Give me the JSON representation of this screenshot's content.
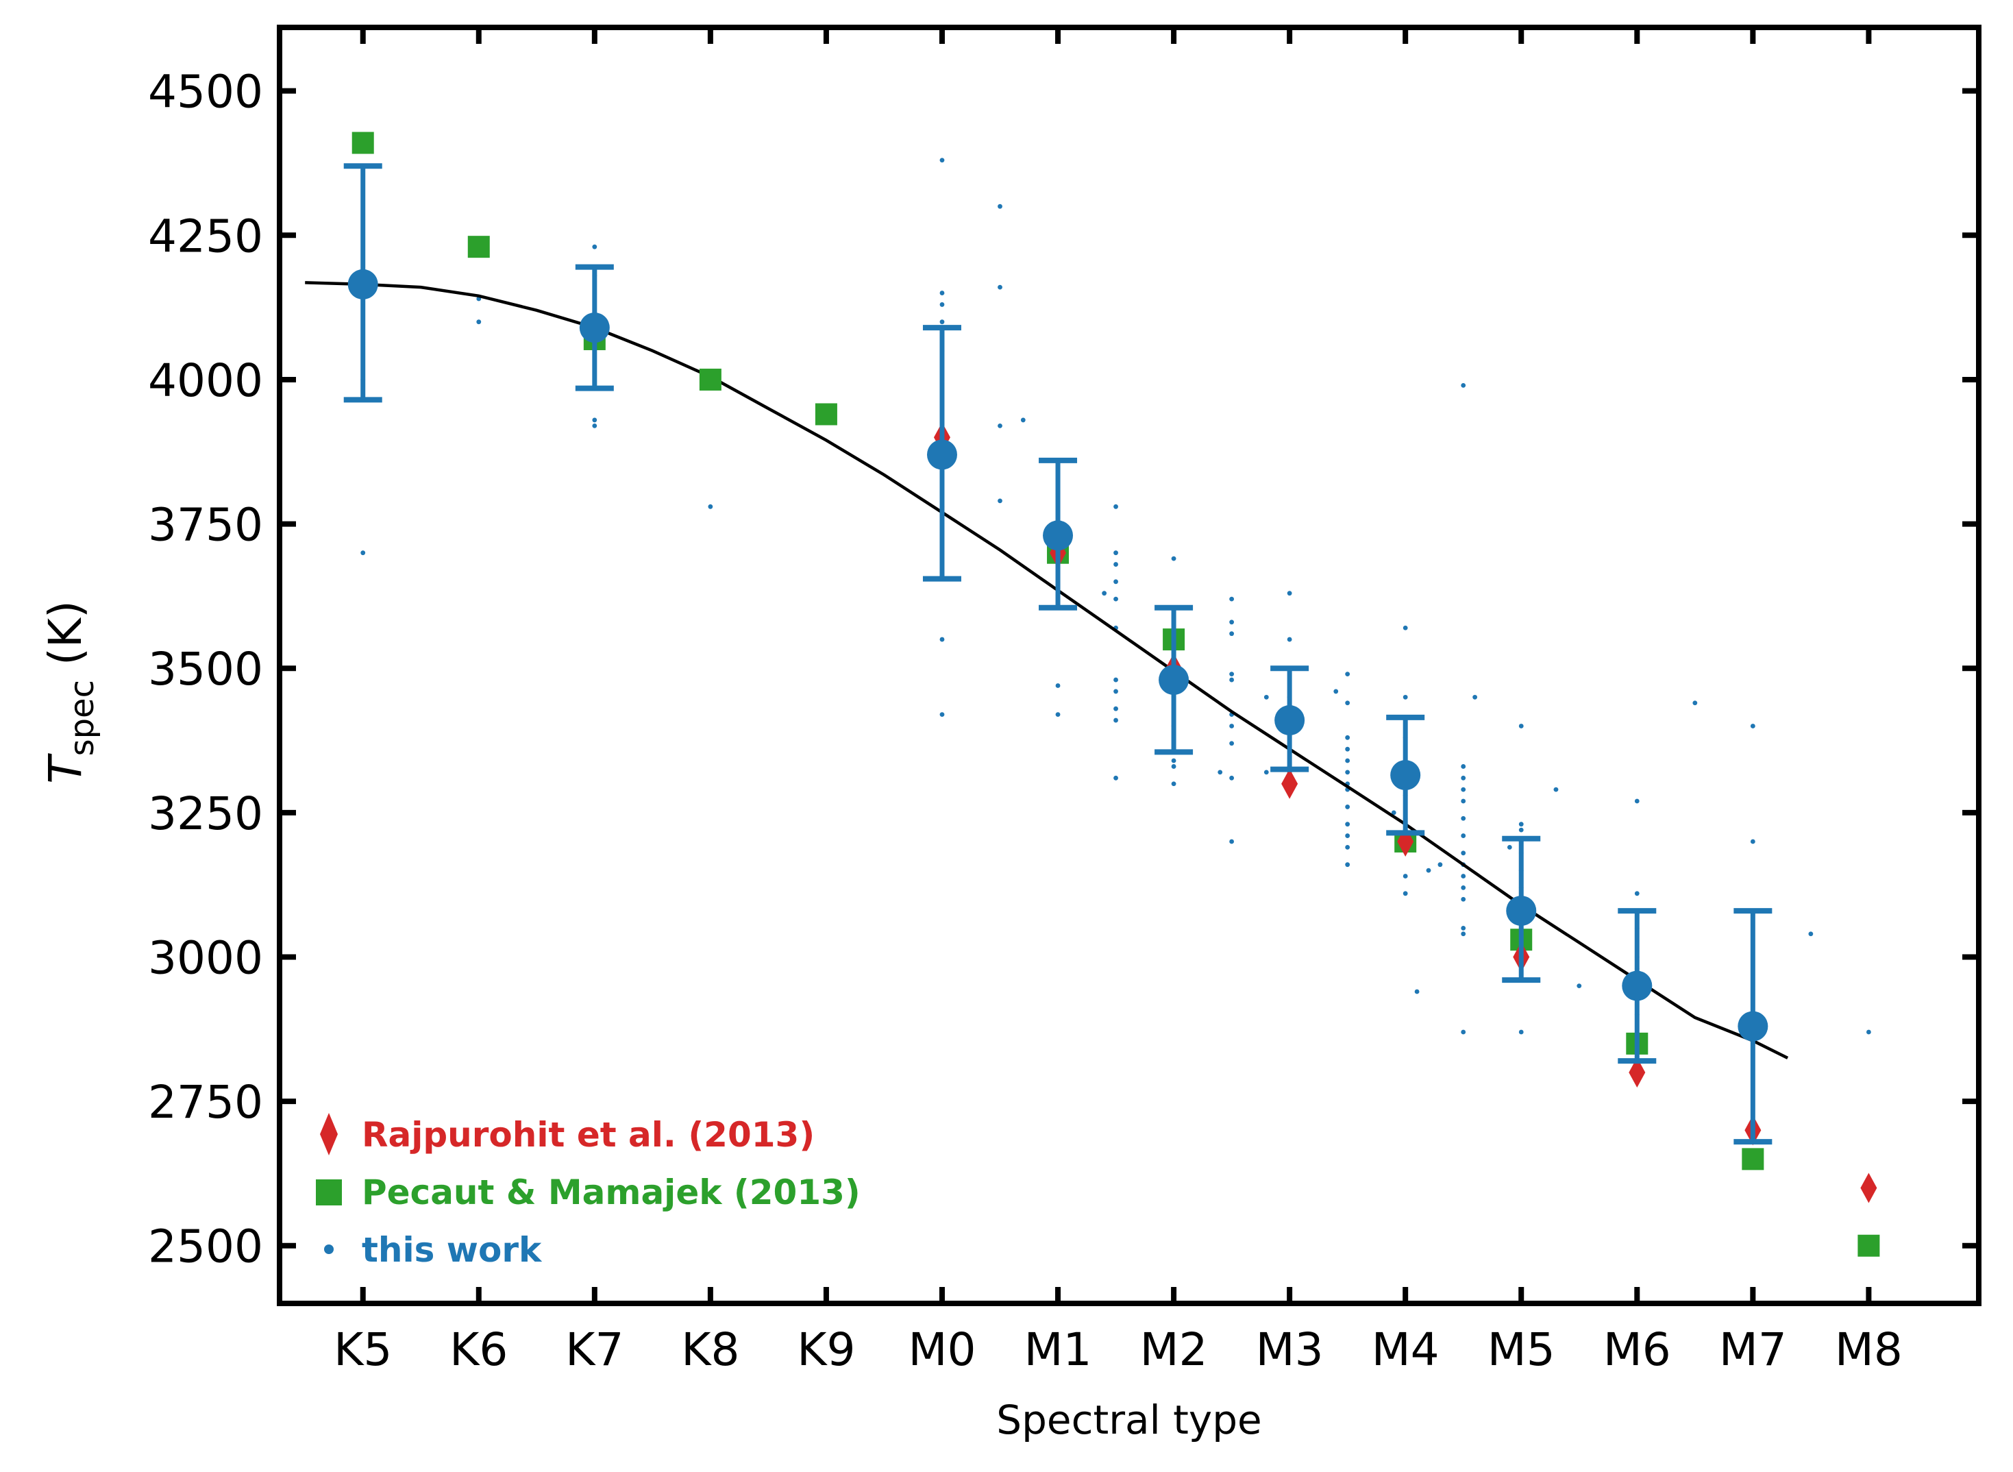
{
  "chart_data": {
    "type": "scatter",
    "xlabel": "Spectral type",
    "ylabel": {
      "main": "T",
      "subscript": "spec",
      "unit": "(K)"
    },
    "categories": [
      "K5",
      "K6",
      "K7",
      "K8",
      "K9",
      "M0",
      "M1",
      "M2",
      "M3",
      "M4",
      "M5",
      "M6",
      "M7",
      "M8"
    ],
    "yticks": [
      2500,
      2750,
      3000,
      3250,
      3500,
      3750,
      4000,
      4250,
      4500
    ],
    "ylim": [
      2400,
      4610
    ],
    "xlim": [
      -0.72,
      13.95
    ],
    "colors": {
      "this_work": "#1f77b4",
      "pecaut": "#2ca02c",
      "rajpurohit": "#d62728",
      "fit": "#000000"
    },
    "legend": {
      "position": "lower-left",
      "entries": [
        {
          "label": "Rajpurohit et al. (2013)",
          "marker": "diamond",
          "color": "#d62728"
        },
        {
          "label": "Pecaut & Mamajek (2013)",
          "marker": "square",
          "color": "#2ca02c"
        },
        {
          "label": "this work",
          "marker": "dot",
          "color": "#1f77b4"
        }
      ]
    },
    "series": [
      {
        "name": "this work (individual stars)",
        "marker": "small-dot",
        "points": [
          [
            0,
            3700
          ],
          [
            0,
            4150
          ],
          [
            0,
            4000
          ],
          [
            1,
            4140
          ],
          [
            1,
            4100
          ],
          [
            2,
            4230
          ],
          [
            2,
            4180
          ],
          [
            2,
            3930
          ],
          [
            2,
            3920
          ],
          [
            3,
            3780
          ],
          [
            5,
            4380
          ],
          [
            5,
            4150
          ],
          [
            5,
            4130
          ],
          [
            5,
            4100
          ],
          [
            5,
            4050
          ],
          [
            5,
            3900
          ],
          [
            5,
            3780
          ],
          [
            5,
            3550
          ],
          [
            5,
            3420
          ],
          [
            5.5,
            4300
          ],
          [
            5.5,
            4160
          ],
          [
            5.5,
            3920
          ],
          [
            5.5,
            3790
          ],
          [
            5.7,
            3930
          ],
          [
            6,
            3680
          ],
          [
            6,
            3470
          ],
          [
            6,
            3420
          ],
          [
            6.4,
            3630
          ],
          [
            6.5,
            3780
          ],
          [
            6.5,
            3700
          ],
          [
            6.5,
            3680
          ],
          [
            6.5,
            3650
          ],
          [
            6.5,
            3620
          ],
          [
            6.5,
            3570
          ],
          [
            6.5,
            3480
          ],
          [
            6.5,
            3460
          ],
          [
            6.5,
            3430
          ],
          [
            6.5,
            3410
          ],
          [
            6.5,
            3310
          ],
          [
            7,
            3690
          ],
          [
            7,
            3550
          ],
          [
            7,
            3480
          ],
          [
            7,
            3400
          ],
          [
            7,
            3340
          ],
          [
            7,
            3330
          ],
          [
            7,
            3300
          ],
          [
            7.4,
            3320
          ],
          [
            7.5,
            3620
          ],
          [
            7.5,
            3580
          ],
          [
            7.5,
            3560
          ],
          [
            7.5,
            3490
          ],
          [
            7.5,
            3480
          ],
          [
            7.5,
            3420
          ],
          [
            7.5,
            3400
          ],
          [
            7.5,
            3370
          ],
          [
            7.5,
            3310
          ],
          [
            7.5,
            3200
          ],
          [
            7.8,
            3450
          ],
          [
            7.8,
            3320
          ],
          [
            8,
            3630
          ],
          [
            8,
            3550
          ],
          [
            8,
            3450
          ],
          [
            8,
            3390
          ],
          [
            8,
            3370
          ],
          [
            8,
            3330
          ],
          [
            8,
            3320
          ],
          [
            8.4,
            3460
          ],
          [
            8.5,
            3490
          ],
          [
            8.5,
            3440
          ],
          [
            8.5,
            3380
          ],
          [
            8.5,
            3360
          ],
          [
            8.5,
            3340
          ],
          [
            8.5,
            3320
          ],
          [
            8.5,
            3300
          ],
          [
            8.5,
            3290
          ],
          [
            8.5,
            3260
          ],
          [
            8.5,
            3230
          ],
          [
            8.5,
            3210
          ],
          [
            8.5,
            3190
          ],
          [
            8.5,
            3160
          ],
          [
            8.9,
            3250
          ],
          [
            9,
            3570
          ],
          [
            9,
            3450
          ],
          [
            9,
            3380
          ],
          [
            9,
            3340
          ],
          [
            9,
            3280
          ],
          [
            9,
            3240
          ],
          [
            9,
            3220
          ],
          [
            9,
            3200
          ],
          [
            9,
            3140
          ],
          [
            9,
            3110
          ],
          [
            9.1,
            2940
          ],
          [
            9.2,
            3150
          ],
          [
            9.3,
            3160
          ],
          [
            9.5,
            3990
          ],
          [
            9.5,
            3330
          ],
          [
            9.5,
            3310
          ],
          [
            9.5,
            3290
          ],
          [
            9.5,
            3270
          ],
          [
            9.5,
            3240
          ],
          [
            9.5,
            3210
          ],
          [
            9.5,
            3180
          ],
          [
            9.5,
            3160
          ],
          [
            9.5,
            3140
          ],
          [
            9.5,
            3120
          ],
          [
            9.5,
            3100
          ],
          [
            9.5,
            3050
          ],
          [
            9.5,
            3040
          ],
          [
            9.5,
            2870
          ],
          [
            9.6,
            3450
          ],
          [
            9.9,
            3190
          ],
          [
            10,
            3400
          ],
          [
            10,
            3230
          ],
          [
            10,
            3220
          ],
          [
            10,
            3200
          ],
          [
            10,
            3180
          ],
          [
            10,
            3150
          ],
          [
            10,
            3120
          ],
          [
            10,
            3080
          ],
          [
            10,
            2870
          ],
          [
            10.3,
            3290
          ],
          [
            10.5,
            2950
          ],
          [
            11,
            3270
          ],
          [
            11,
            3110
          ],
          [
            11,
            3050
          ],
          [
            11,
            3000
          ],
          [
            11,
            2980
          ],
          [
            11,
            2900
          ],
          [
            11.5,
            3440
          ],
          [
            12,
            3400
          ],
          [
            12,
            3200
          ],
          [
            12,
            2890
          ],
          [
            12,
            2870
          ],
          [
            12.5,
            3040
          ],
          [
            13,
            2870
          ]
        ]
      },
      {
        "name": "this work (binned mean)",
        "marker": "large-dot-errorbar",
        "points": [
          {
            "x": 0,
            "y": 4165,
            "lo": 3965,
            "hi": 4370
          },
          {
            "x": 2,
            "y": 4090,
            "lo": 3985,
            "hi": 4195
          },
          {
            "x": 5,
            "y": 3870,
            "lo": 3655,
            "hi": 4090
          },
          {
            "x": 6,
            "y": 3730,
            "lo": 3605,
            "hi": 3860
          },
          {
            "x": 7,
            "y": 3480,
            "lo": 3355,
            "hi": 3605
          },
          {
            "x": 8,
            "y": 3410,
            "lo": 3325,
            "hi": 3500
          },
          {
            "x": 9,
            "y": 3315,
            "lo": 3215,
            "hi": 3415
          },
          {
            "x": 10,
            "y": 3080,
            "lo": 2960,
            "hi": 3205
          },
          {
            "x": 11,
            "y": 2950,
            "lo": 2820,
            "hi": 3080
          },
          {
            "x": 12,
            "y": 2880,
            "lo": 2680,
            "hi": 3080
          }
        ]
      },
      {
        "name": "Pecaut & Mamajek (2013)",
        "marker": "square",
        "points": [
          [
            0,
            4410
          ],
          [
            1,
            4230
          ],
          [
            2,
            4070
          ],
          [
            3,
            4000
          ],
          [
            4,
            3940
          ],
          [
            6,
            3700
          ],
          [
            7,
            3550
          ],
          [
            9,
            3200
          ],
          [
            10,
            3030
          ],
          [
            11,
            2850
          ],
          [
            12,
            2650
          ],
          [
            13,
            2500
          ]
        ]
      },
      {
        "name": "Rajpurohit et al. (2013)",
        "marker": "diamond",
        "points": [
          [
            5,
            3900
          ],
          [
            6,
            3700
          ],
          [
            7,
            3500
          ],
          [
            8,
            3300
          ],
          [
            9,
            3200
          ],
          [
            10,
            3000
          ],
          [
            11,
            2800
          ],
          [
            12,
            2700
          ],
          [
            13,
            2600
          ]
        ]
      },
      {
        "name": "fit",
        "marker": "line",
        "points": [
          [
            -0.5,
            4168
          ],
          [
            0,
            4165
          ],
          [
            0.5,
            4160
          ],
          [
            1,
            4145
          ],
          [
            1.5,
            4120
          ],
          [
            2,
            4090
          ],
          [
            2.5,
            4050
          ],
          [
            3,
            4005
          ],
          [
            3.5,
            3950
          ],
          [
            4,
            3895
          ],
          [
            4.5,
            3835
          ],
          [
            5,
            3770
          ],
          [
            5.5,
            3705
          ],
          [
            6,
            3635
          ],
          [
            6.5,
            3565
          ],
          [
            7,
            3495
          ],
          [
            7.5,
            3425
          ],
          [
            8,
            3360
          ],
          [
            8.5,
            3295
          ],
          [
            9,
            3230
          ],
          [
            9.5,
            3160
          ],
          [
            10,
            3090
          ],
          [
            10.5,
            3025
          ],
          [
            11,
            2960
          ],
          [
            11.5,
            2895
          ],
          [
            12,
            2855
          ],
          [
            12.3,
            2825
          ]
        ]
      }
    ]
  }
}
